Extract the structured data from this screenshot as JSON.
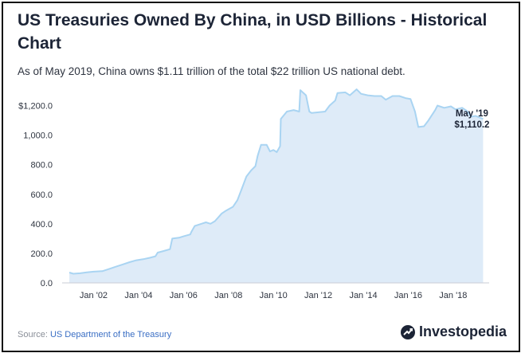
{
  "header": {
    "title": "US Treasuries Owned By China, in USD Billions - Historical Chart",
    "subtitle": "As of May 2019, China owns $1.11 trillion of the total $22 trillion US national debt."
  },
  "footer": {
    "source_prefix": "Source: ",
    "source_name": "US Department of the Treasury",
    "brand": "Investopedia"
  },
  "colors": {
    "line": "#a9d4f2",
    "fill": "#deebf8",
    "text": "#1c2436",
    "axis_text": "#2e3440",
    "source_link": "#3b6fc4"
  },
  "chart_data": {
    "type": "area",
    "title": "US Treasuries Owned By China, in USD Billions - Historical Chart",
    "xlabel": "",
    "ylabel": "",
    "ylim": [
      0,
      1300
    ],
    "xlim": [
      2000.6,
      2019.6
    ],
    "grid": false,
    "y_ticks": [
      0,
      200,
      400,
      600,
      800,
      1000,
      1200
    ],
    "y_tick_labels": [
      "0.0",
      "200.0",
      "400.0",
      "600.0",
      "800.0",
      "1,000.0",
      "$1,200.0"
    ],
    "x_ticks": [
      2002,
      2004,
      2006,
      2008,
      2010,
      2012,
      2014,
      2016,
      2018
    ],
    "x_tick_labels": [
      "Jan '02",
      "Jan '04",
      "Jan '06",
      "Jan '08",
      "Jan '10",
      "Jan '12",
      "Jan '14",
      "Jan '16",
      "Jan '18"
    ],
    "annotation": {
      "x": 2019.33,
      "y": 1110.2,
      "label": "May '19",
      "value_label": "$1,110.2"
    },
    "series": [
      {
        "values": [
          [
            2000.92,
            70
          ],
          [
            2001.1,
            62
          ],
          [
            2001.4,
            65
          ],
          [
            2001.7,
            72
          ],
          [
            2002.0,
            76
          ],
          [
            2002.4,
            80
          ],
          [
            2002.7,
            95
          ],
          [
            2003.0,
            110
          ],
          [
            2003.3,
            125
          ],
          [
            2003.6,
            140
          ],
          [
            2003.9,
            153
          ],
          [
            2004.2,
            160
          ],
          [
            2004.5,
            170
          ],
          [
            2004.75,
            180
          ],
          [
            2004.85,
            205
          ],
          [
            2005.1,
            215
          ],
          [
            2005.4,
            228
          ],
          [
            2005.5,
            300
          ],
          [
            2005.8,
            306
          ],
          [
            2006.0,
            315
          ],
          [
            2006.3,
            328
          ],
          [
            2006.35,
            345
          ],
          [
            2006.5,
            385
          ],
          [
            2006.8,
            400
          ],
          [
            2007.0,
            410
          ],
          [
            2007.2,
            400
          ],
          [
            2007.4,
            418
          ],
          [
            2007.7,
            470
          ],
          [
            2007.9,
            490
          ],
          [
            2008.2,
            515
          ],
          [
            2008.4,
            560
          ],
          [
            2008.6,
            640
          ],
          [
            2008.8,
            720
          ],
          [
            2009.0,
            760
          ],
          [
            2009.2,
            790
          ],
          [
            2009.3,
            860
          ],
          [
            2009.45,
            935
          ],
          [
            2009.7,
            935
          ],
          [
            2009.85,
            890
          ],
          [
            2010.0,
            900
          ],
          [
            2010.15,
            885
          ],
          [
            2010.3,
            925
          ],
          [
            2010.33,
            1110
          ],
          [
            2010.6,
            1160
          ],
          [
            2010.9,
            1170
          ],
          [
            2011.15,
            1160
          ],
          [
            2011.2,
            1305
          ],
          [
            2011.45,
            1270
          ],
          [
            2011.6,
            1160
          ],
          [
            2011.7,
            1150
          ],
          [
            2012.0,
            1155
          ],
          [
            2012.3,
            1160
          ],
          [
            2012.5,
            1200
          ],
          [
            2012.75,
            1235
          ],
          [
            2012.85,
            1285
          ],
          [
            2013.2,
            1290
          ],
          [
            2013.4,
            1270
          ],
          [
            2013.7,
            1310
          ],
          [
            2013.9,
            1280
          ],
          [
            2014.2,
            1270
          ],
          [
            2014.5,
            1265
          ],
          [
            2014.8,
            1265
          ],
          [
            2015.0,
            1240
          ],
          [
            2015.3,
            1265
          ],
          [
            2015.6,
            1265
          ],
          [
            2015.9,
            1250
          ],
          [
            2016.1,
            1245
          ],
          [
            2016.3,
            1160
          ],
          [
            2016.45,
            1055
          ],
          [
            2016.7,
            1060
          ],
          [
            2016.9,
            1100
          ],
          [
            2017.2,
            1170
          ],
          [
            2017.3,
            1200
          ],
          [
            2017.6,
            1185
          ],
          [
            2017.9,
            1195
          ],
          [
            2018.1,
            1175
          ],
          [
            2018.4,
            1185
          ],
          [
            2018.6,
            1165
          ],
          [
            2018.8,
            1125
          ],
          [
            2019.0,
            1130
          ],
          [
            2019.33,
            1110.2
          ]
        ]
      }
    ]
  }
}
